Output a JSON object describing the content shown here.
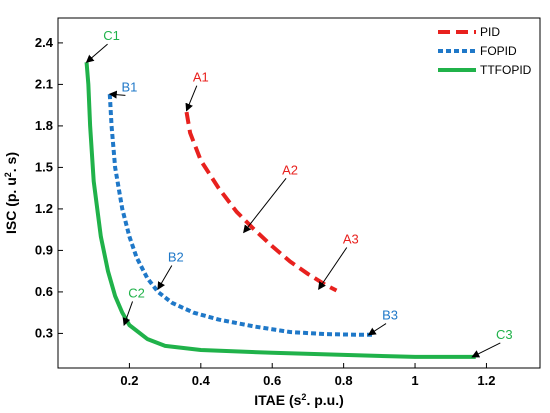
{
  "chart_data": {
    "type": "line",
    "xlabel_main": "ITAE (s",
    "xlabel_sup": "2",
    "xlabel_tail": ". p.u.)",
    "ylabel_main": "ISC (p. u",
    "ylabel_sup": "2",
    "ylabel_tail": ". s)",
    "xlim": [
      0,
      1.35
    ],
    "ylim": [
      0.05,
      2.58
    ],
    "xticks": [
      0.2,
      0.4,
      0.6,
      0.8,
      1,
      1.2
    ],
    "xtick_labels": [
      "0.2",
      "0.4",
      "0.6",
      "0.8",
      "1",
      "1.2"
    ],
    "yticks": [
      0.3,
      0.6,
      0.9,
      1.2,
      1.5,
      1.8,
      2.1,
      2.4
    ],
    "ytick_labels": [
      "0.3",
      "0.6",
      "0.9",
      "1.2",
      "1.5",
      "1.8",
      "2.1",
      "2.4"
    ],
    "legend_position": "top-right",
    "series": [
      {
        "name": "PID",
        "color": "#e8211e",
        "style": "dashed",
        "x": [
          0.36,
          0.37,
          0.4,
          0.45,
          0.5,
          0.55,
          0.6,
          0.65,
          0.7,
          0.75,
          0.78
        ],
        "y": [
          1.9,
          1.75,
          1.55,
          1.35,
          1.18,
          1.05,
          0.93,
          0.82,
          0.73,
          0.65,
          0.61
        ]
      },
      {
        "name": "FOPID",
        "color": "#1f78c8",
        "style": "dotted",
        "x": [
          0.145,
          0.15,
          0.16,
          0.18,
          0.2,
          0.22,
          0.25,
          0.28,
          0.32,
          0.38,
          0.45,
          0.55,
          0.65,
          0.75,
          0.85,
          0.88
        ],
        "y": [
          2.03,
          1.8,
          1.5,
          1.2,
          1.0,
          0.85,
          0.7,
          0.6,
          0.52,
          0.45,
          0.4,
          0.35,
          0.31,
          0.295,
          0.29,
          0.29
        ]
      },
      {
        "name": "TTFOPID",
        "color": "#20b24a",
        "style": "solid",
        "x": [
          0.08,
          0.085,
          0.09,
          0.1,
          0.12,
          0.14,
          0.16,
          0.18,
          0.2,
          0.25,
          0.3,
          0.4,
          0.6,
          0.8,
          1.0,
          1.17
        ],
        "y": [
          2.26,
          2.1,
          1.8,
          1.4,
          1.0,
          0.75,
          0.57,
          0.45,
          0.36,
          0.26,
          0.21,
          0.18,
          0.16,
          0.145,
          0.13,
          0.13
        ]
      }
    ],
    "annotations": [
      {
        "text": "A1",
        "color": "#e8211e",
        "label_x": 0.4,
        "label_y": 2.12,
        "tip_x": 0.36,
        "tip_y": 1.91
      },
      {
        "text": "A2",
        "color": "#e8211e",
        "label_x": 0.65,
        "label_y": 1.45,
        "tip_x": 0.52,
        "tip_y": 1.03
      },
      {
        "text": "A3",
        "color": "#e8211e",
        "label_x": 0.82,
        "label_y": 0.95,
        "tip_x": 0.73,
        "tip_y": 0.62
      },
      {
        "text": "B1",
        "color": "#1f78c8",
        "label_x": 0.2,
        "label_y": 2.05,
        "tip_x": 0.145,
        "tip_y": 2.03
      },
      {
        "text": "B2",
        "color": "#1f78c8",
        "label_x": 0.33,
        "label_y": 0.82,
        "tip_x": 0.28,
        "tip_y": 0.62
      },
      {
        "text": "B3",
        "color": "#1f78c8",
        "label_x": 0.93,
        "label_y": 0.4,
        "tip_x": 0.87,
        "tip_y": 0.29
      },
      {
        "text": "C1",
        "color": "#20b24a",
        "label_x": 0.15,
        "label_y": 2.42,
        "tip_x": 0.08,
        "tip_y": 2.26
      },
      {
        "text": "C2",
        "color": "#20b24a",
        "label_x": 0.22,
        "label_y": 0.56,
        "tip_x": 0.185,
        "tip_y": 0.36
      },
      {
        "text": "C3",
        "color": "#20b24a",
        "label_x": 1.25,
        "label_y": 0.26,
        "tip_x": 1.16,
        "tip_y": 0.13
      }
    ]
  }
}
